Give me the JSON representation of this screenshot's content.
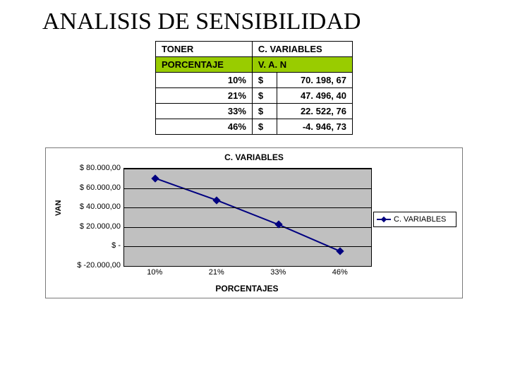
{
  "page_title": "ANALISIS DE SENSIBILIDAD",
  "table": {
    "header1_left": "TONER",
    "header1_right": "C. VARIABLES",
    "header2_left": "PORCENTAJE",
    "header2_right": "V. A. N",
    "rows": [
      {
        "pct": "10%",
        "dollar": "$",
        "val": "70. 198, 67"
      },
      {
        "pct": "21%",
        "dollar": "$",
        "val": "47. 496, 40"
      },
      {
        "pct": "33%",
        "dollar": "$",
        "val": "22. 522, 76"
      },
      {
        "pct": "46%",
        "dollar": "$",
        "val": "-4. 946, 73"
      }
    ]
  },
  "chart": {
    "title": "C. VARIABLES",
    "y_axis_title": "VAN",
    "x_axis_title": "PORCENTAJES",
    "y_ticks": [
      {
        "label": "$ 80.000,00",
        "value": 80000
      },
      {
        "label": "$ 60.000,00",
        "value": 60000
      },
      {
        "label": "$ 40.000,00",
        "value": 40000
      },
      {
        "label": "$ 20.000,00",
        "value": 20000
      },
      {
        "label": "$ -",
        "value": 0
      },
      {
        "label": "$ -20.000,00",
        "value": -20000
      }
    ],
    "y_min": -20000,
    "y_max": 80000,
    "x_categories": [
      "10%",
      "21%",
      "33%",
      "46%"
    ],
    "series": {
      "name": "C. VARIABLES",
      "color": "#000080",
      "line_width": 2,
      "values": [
        70198.67,
        47496.4,
        22522.76,
        -4946.73
      ]
    },
    "plot_bg": "#c0c0c0",
    "grid_color": "#000000",
    "background_color": "#ffffff"
  }
}
